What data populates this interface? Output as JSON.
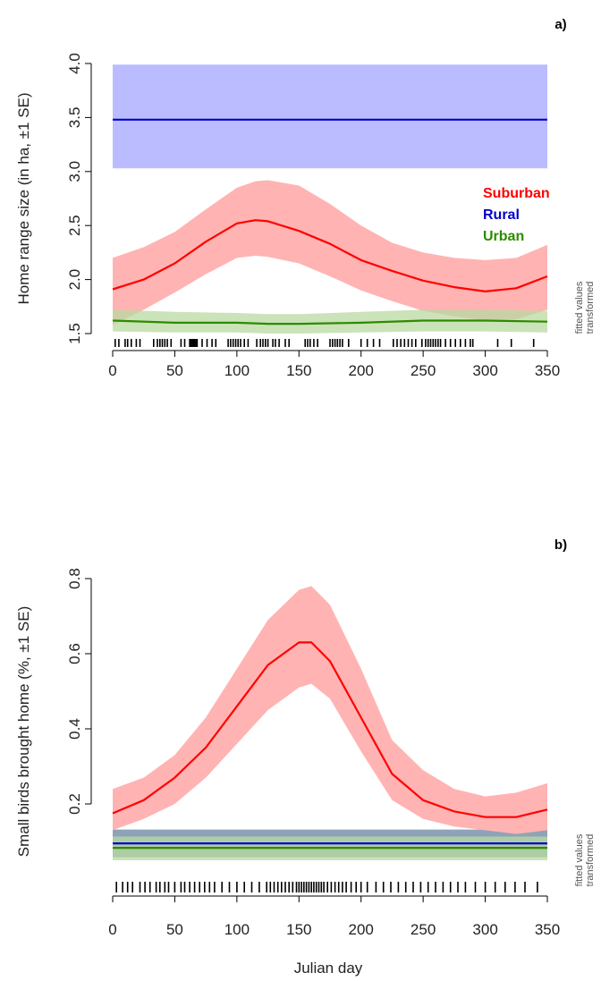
{
  "xlabel": "Julian day",
  "side_note": [
    "fitted values",
    "transformed"
  ],
  "colors": {
    "suburban": "#ff0000",
    "suburban_band": "#ffb3b3",
    "rural": "#0000cc",
    "rural_band": "#bbbbff",
    "urban": "#2e8b00",
    "urban_band": "#b8d9a0",
    "rural_band_b": "#8fa3b8"
  },
  "chart_data": [
    {
      "type": "line",
      "panel_label": "a)",
      "ylabel": "Home range size (in ha, ±1 SE)",
      "xlim": [
        0,
        350
      ],
      "ylim": [
        1.5,
        4.0
      ],
      "xticks": [
        0,
        50,
        100,
        150,
        200,
        250,
        300,
        350
      ],
      "yticks": [
        "1.5",
        "2.0",
        "2.5",
        "3.0",
        "3.5",
        "4.0"
      ],
      "legend": {
        "placement": "right",
        "entries": [
          "Suburban",
          "Rural",
          "Urban"
        ]
      },
      "series": [
        {
          "name": "Suburban",
          "x": [
            0,
            25,
            50,
            75,
            100,
            115,
            125,
            150,
            175,
            200,
            225,
            250,
            275,
            300,
            325,
            350
          ],
          "values": [
            1.91,
            2.0,
            2.15,
            2.35,
            2.52,
            2.55,
            2.54,
            2.45,
            2.33,
            2.18,
            2.08,
            1.99,
            1.93,
            1.89,
            1.92,
            2.03
          ],
          "lower": [
            1.58,
            1.72,
            1.88,
            2.05,
            2.2,
            2.22,
            2.21,
            2.15,
            2.03,
            1.9,
            1.8,
            1.71,
            1.66,
            1.62,
            1.63,
            1.72
          ],
          "upper": [
            2.2,
            2.3,
            2.44,
            2.65,
            2.85,
            2.91,
            2.92,
            2.87,
            2.7,
            2.5,
            2.34,
            2.25,
            2.2,
            2.18,
            2.2,
            2.32
          ]
        },
        {
          "name": "Rural",
          "x": [
            0,
            350
          ],
          "values": [
            3.48,
            3.48
          ],
          "lower": [
            3.03,
            3.03
          ],
          "upper": [
            3.99,
            3.99
          ]
        },
        {
          "name": "Urban",
          "x": [
            0,
            50,
            100,
            125,
            150,
            200,
            250,
            300,
            350
          ],
          "values": [
            1.62,
            1.6,
            1.6,
            1.59,
            1.59,
            1.6,
            1.62,
            1.62,
            1.61
          ],
          "lower": [
            1.52,
            1.51,
            1.51,
            1.5,
            1.5,
            1.51,
            1.52,
            1.52,
            1.51
          ],
          "upper": [
            1.72,
            1.7,
            1.69,
            1.68,
            1.68,
            1.7,
            1.72,
            1.72,
            1.71
          ]
        }
      ],
      "rug": [
        2,
        5,
        10,
        12,
        15,
        19,
        22,
        33,
        36,
        38,
        40,
        42,
        44,
        47,
        55,
        58,
        62,
        63,
        64,
        65,
        66,
        67,
        68,
        72,
        76,
        80,
        83,
        93,
        95,
        97,
        99,
        101,
        103,
        106,
        109,
        116,
        119,
        121,
        123,
        125,
        129,
        131,
        134,
        139,
        142,
        155,
        157,
        159,
        162,
        165,
        175,
        177,
        179,
        181,
        183,
        185,
        190,
        200,
        205,
        210,
        215,
        226,
        229,
        232,
        235,
        238,
        241,
        244,
        249,
        252,
        254,
        256,
        258,
        260,
        262,
        264,
        268,
        272,
        276,
        280,
        284,
        288,
        290,
        310,
        321,
        339
      ]
    },
    {
      "type": "line",
      "panel_label": "b)",
      "ylabel": "Small birds brought home (%, ±1 SE)",
      "xlim": [
        0,
        350
      ],
      "ylim": [
        0.05,
        0.8
      ],
      "xticks": [
        0,
        50,
        100,
        150,
        200,
        250,
        300,
        350
      ],
      "yticks": [
        "0.2",
        "0.4",
        "0.6",
        "0.8"
      ],
      "series": [
        {
          "name": "Suburban",
          "x": [
            0,
            25,
            50,
            75,
            100,
            125,
            150,
            160,
            175,
            200,
            225,
            250,
            275,
            300,
            325,
            350
          ],
          "values": [
            0.175,
            0.21,
            0.27,
            0.35,
            0.46,
            0.57,
            0.63,
            0.63,
            0.58,
            0.43,
            0.28,
            0.21,
            0.18,
            0.165,
            0.165,
            0.185
          ],
          "lower": [
            0.13,
            0.16,
            0.2,
            0.27,
            0.36,
            0.45,
            0.51,
            0.52,
            0.48,
            0.34,
            0.21,
            0.16,
            0.14,
            0.13,
            0.12,
            0.13
          ],
          "upper": [
            0.24,
            0.27,
            0.33,
            0.43,
            0.56,
            0.69,
            0.77,
            0.78,
            0.73,
            0.56,
            0.37,
            0.29,
            0.24,
            0.22,
            0.23,
            0.255
          ]
        },
        {
          "name": "Rural",
          "x": [
            0,
            350
          ],
          "values": [
            0.095,
            0.095
          ],
          "lower": [
            0.058,
            0.058
          ],
          "upper": [
            0.132,
            0.132
          ]
        },
        {
          "name": "Urban",
          "x": [
            0,
            350
          ],
          "values": [
            0.083,
            0.083
          ],
          "lower": [
            0.05,
            0.05
          ],
          "upper": [
            0.113,
            0.113
          ]
        }
      ],
      "rug": [
        3,
        8,
        12,
        16,
        22,
        26,
        30,
        35,
        38,
        42,
        45,
        50,
        55,
        58,
        62,
        66,
        70,
        74,
        78,
        82,
        88,
        94,
        100,
        106,
        112,
        118,
        124,
        127,
        130,
        133,
        136,
        139,
        142,
        145,
        148,
        150,
        152,
        154,
        156,
        158,
        160,
        162,
        164,
        166,
        168,
        170,
        173,
        176,
        179,
        182,
        185,
        188,
        192,
        196,
        200,
        205,
        212,
        218,
        224,
        230,
        236,
        242,
        248,
        254,
        260,
        266,
        272,
        278,
        284,
        292,
        300,
        308,
        316,
        324,
        332,
        342
      ]
    }
  ]
}
